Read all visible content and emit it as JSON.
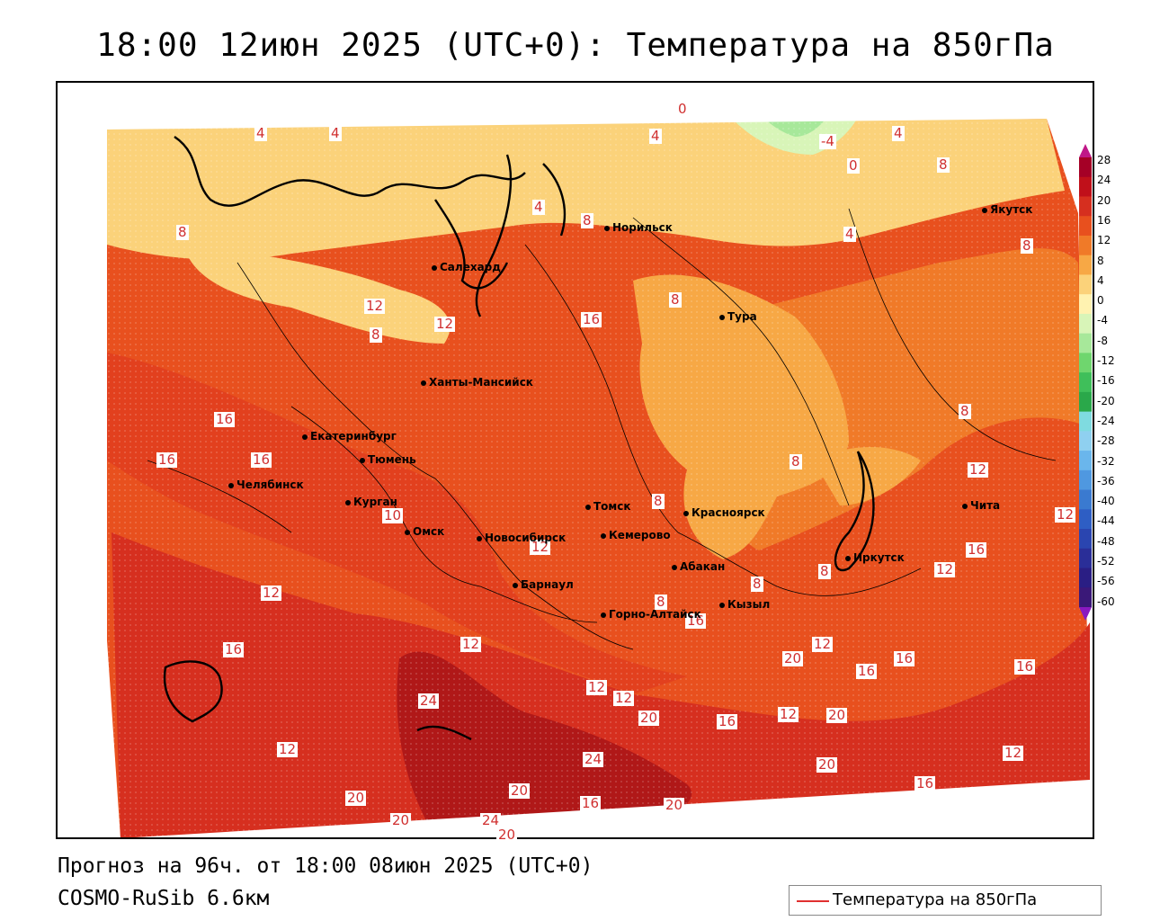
{
  "header": {
    "title": "18:00 12июн 2025 (UTC+0): Температура на 850гПа"
  },
  "footer": {
    "forecast_line": "Прогноз на 96ч. от 18:00 08июн 2025 (UTC+0)",
    "model_line": "COSMO-RuSib 6.6км"
  },
  "legend": {
    "label": "Температура на 850гПа",
    "line_color": "#e03030"
  },
  "colorbar": {
    "ticks": [
      "28",
      "24",
      "20",
      "16",
      "12",
      "8",
      "4",
      "0",
      "-4",
      "-8",
      "-12",
      "-16",
      "-20",
      "-24",
      "-28",
      "-32",
      "-36",
      "-40",
      "-44",
      "-48",
      "-52",
      "-56",
      "-60"
    ],
    "colors": [
      "#a50026",
      "#c0101a",
      "#d62f1f",
      "#e8501e",
      "#f07a28",
      "#f7a845",
      "#fbd27a",
      "#fff2b0",
      "#d8f5b8",
      "#a7e89a",
      "#6fd66e",
      "#3fbf5a",
      "#2aa84a",
      "#7fdbe0",
      "#8fd0f0",
      "#6ab6ec",
      "#4f98e0",
      "#3a7ad0",
      "#2e5ec4",
      "#2a45b0",
      "#2a2e98",
      "#2a1e84",
      "#3a1878"
    ]
  },
  "cities": [
    {
      "name": "Норильск"
    },
    {
      "name": "Якутск"
    },
    {
      "name": "Салехард"
    },
    {
      "name": "Тура"
    },
    {
      "name": "Ханты-Мансийск"
    },
    {
      "name": "Екатеринбург"
    },
    {
      "name": "Тюмень"
    },
    {
      "name": "Челябинск"
    },
    {
      "name": "Курган"
    },
    {
      "name": "Омск"
    },
    {
      "name": "Томск"
    },
    {
      "name": "Красноярск"
    },
    {
      "name": "Новосибирск"
    },
    {
      "name": "Кемерово"
    },
    {
      "name": "Абакан"
    },
    {
      "name": "Иркутск"
    },
    {
      "name": "Чита"
    },
    {
      "name": "Барнаул"
    },
    {
      "name": "Горно-Алтайск"
    },
    {
      "name": "Кызыл"
    }
  ],
  "isotherm_labels": [
    "4",
    "4",
    "0",
    "4",
    "-4",
    "0",
    "4",
    "8",
    "4",
    "8",
    "8",
    "8",
    "4",
    "12",
    "12",
    "8",
    "8",
    "8",
    "8",
    "12",
    "12",
    "16",
    "16",
    "10",
    "16",
    "16",
    "12",
    "8",
    "12",
    "8",
    "12",
    "8",
    "12",
    "8",
    "16",
    "12",
    "16",
    "16",
    "12",
    "16",
    "20",
    "12",
    "16",
    "12",
    "20",
    "12",
    "12",
    "16",
    "24",
    "24",
    "20",
    "20",
    "20",
    "20",
    "20",
    "24",
    "16",
    "20",
    "20",
    "16",
    "16"
  ]
}
